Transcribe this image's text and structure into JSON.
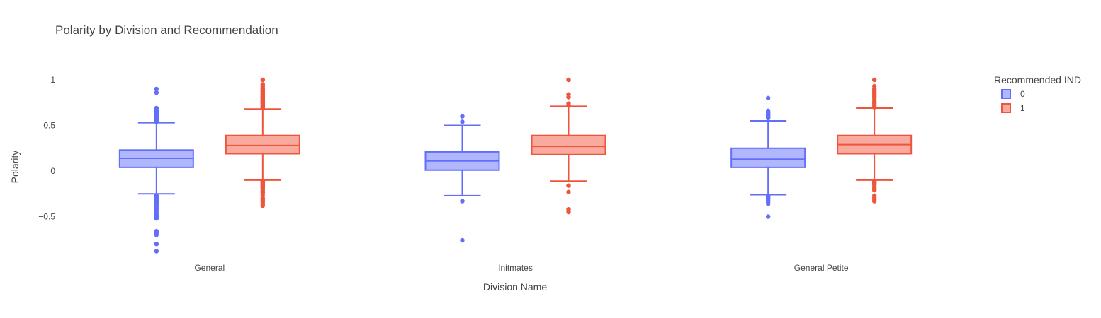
{
  "chart_data": {
    "type": "box",
    "title": "Polarity by Division and Recommendation",
    "xlabel": "Division Name",
    "ylabel": "Polarity",
    "categories": [
      "General",
      "Initmates",
      "General Petite"
    ],
    "ylim": [
      -0.95,
      1.1
    ],
    "yticks": [
      1,
      0.5,
      0,
      -0.5
    ],
    "ytick_labels": [
      "1",
      "0.5",
      "0",
      "−0.5"
    ],
    "grid": false,
    "legend": {
      "title": "Recommended IND",
      "position": "top-right"
    },
    "series": [
      {
        "name": "0",
        "color": "#636efa",
        "fill": "#b1b7fd",
        "boxes": [
          {
            "category": "General",
            "q1": 0.04,
            "median": 0.14,
            "q3": 0.23,
            "whisker_low": -0.25,
            "whisker_high": 0.53,
            "outliers": [
              0.9,
              0.86,
              0.69,
              0.67,
              0.66,
              0.65,
              0.64,
              0.63,
              0.62,
              0.61,
              0.6,
              0.59,
              0.58,
              0.57,
              0.56,
              0.55,
              0.54,
              -0.27,
              -0.28,
              -0.29,
              -0.3,
              -0.31,
              -0.32,
              -0.33,
              -0.34,
              -0.35,
              -0.36,
              -0.38,
              -0.4,
              -0.42,
              -0.44,
              -0.46,
              -0.48,
              -0.5,
              -0.52,
              -0.66,
              -0.68,
              -0.7,
              -0.8,
              -0.88
            ]
          },
          {
            "category": "Initmates",
            "q1": 0.01,
            "median": 0.11,
            "q3": 0.21,
            "whisker_low": -0.27,
            "whisker_high": 0.5,
            "outliers": [
              0.6,
              0.54,
              -0.33,
              -0.76
            ]
          },
          {
            "category": "General Petite",
            "q1": 0.04,
            "median": 0.13,
            "q3": 0.25,
            "whisker_low": -0.26,
            "whisker_high": 0.55,
            "outliers": [
              0.8,
              0.66,
              0.64,
              0.63,
              0.62,
              0.61,
              0.6,
              0.59,
              0.58,
              -0.27,
              -0.28,
              -0.29,
              -0.3,
              -0.32,
              -0.34,
              -0.36,
              -0.5
            ]
          }
        ]
      },
      {
        "name": "1",
        "color": "#ef553b",
        "fill": "#f7aa9d",
        "boxes": [
          {
            "category": "General",
            "q1": 0.19,
            "median": 0.28,
            "q3": 0.39,
            "whisker_low": -0.1,
            "whisker_high": 0.68,
            "outliers": [
              1.0,
              0.95,
              0.93,
              0.91,
              0.9,
              0.88,
              0.87,
              0.85,
              0.84,
              0.83,
              0.82,
              0.81,
              0.8,
              0.79,
              0.78,
              0.77,
              0.76,
              0.75,
              0.74,
              0.73,
              0.72,
              0.71,
              0.7,
              0.69,
              -0.11,
              -0.12,
              -0.13,
              -0.14,
              -0.15,
              -0.16,
              -0.17,
              -0.18,
              -0.19,
              -0.2,
              -0.22,
              -0.24,
              -0.27,
              -0.3,
              -0.32,
              -0.34,
              -0.36,
              -0.38
            ]
          },
          {
            "category": "Initmates",
            "q1": 0.18,
            "median": 0.27,
            "q3": 0.39,
            "whisker_low": -0.11,
            "whisker_high": 0.71,
            "outliers": [
              1.0,
              0.84,
              0.81,
              0.74,
              0.72,
              -0.16,
              -0.23,
              -0.42,
              -0.45
            ]
          },
          {
            "category": "General Petite",
            "q1": 0.19,
            "median": 0.29,
            "q3": 0.39,
            "whisker_low": -0.1,
            "whisker_high": 0.69,
            "outliers": [
              1.0,
              0.93,
              0.9,
              0.88,
              0.86,
              0.84,
              0.82,
              0.8,
              0.78,
              0.76,
              0.74,
              0.72,
              0.7,
              -0.11,
              -0.12,
              -0.13,
              -0.14,
              -0.15,
              -0.17,
              -0.19,
              -0.21,
              -0.27,
              -0.29,
              -0.31,
              -0.33
            ]
          }
        ]
      }
    ]
  }
}
